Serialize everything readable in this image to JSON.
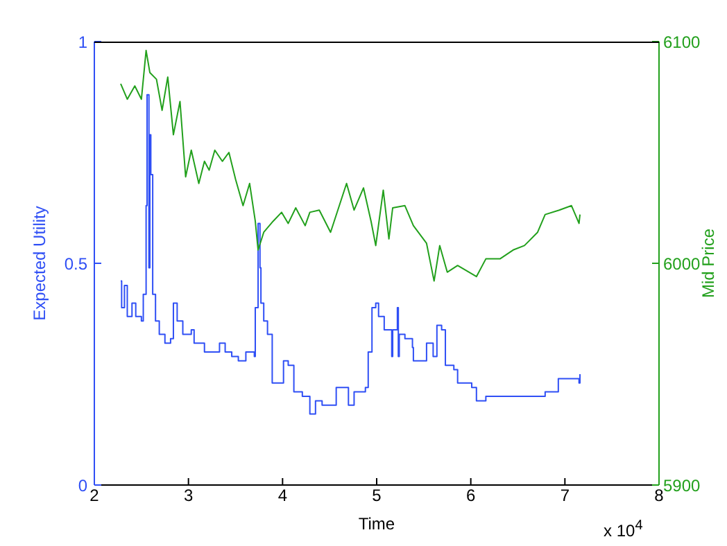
{
  "chart_data": {
    "type": "line",
    "xlabel": "Time",
    "ylabel": "Expected Utility",
    "y2label": "Mid Price",
    "annotations": [
      "x 10$^{4}$"
    ],
    "xlim": [
      2,
      8
    ],
    "xticks": [
      2,
      3,
      4,
      5,
      6,
      7,
      8
    ],
    "ylim": [
      0,
      1
    ],
    "yticks": [
      0,
      0.5,
      1
    ],
    "y2lim": [
      5900,
      6100
    ],
    "y2ticks": [
      5900,
      6000,
      6100
    ],
    "marker": "none",
    "series": [
      {
        "type": "step",
        "color": "#2f4ff5",
        "x": [
          2.28,
          2.29,
          2.32,
          2.35,
          2.4,
          2.44,
          2.5,
          2.52,
          2.55,
          2.56,
          2.58,
          2.59,
          2.6,
          2.62,
          2.65,
          2.69,
          2.75,
          2.81,
          2.84,
          2.88,
          2.94,
          3.03,
          3.06,
          3.17,
          3.31,
          3.33,
          3.39,
          3.46,
          3.53,
          3.61,
          3.7,
          3.71,
          3.74,
          3.76,
          3.77,
          3.8,
          3.84,
          3.89,
          3.95,
          4.01,
          4.06,
          4.12,
          4.21,
          4.29,
          4.35,
          4.42,
          4.54,
          4.57,
          4.64,
          4.7,
          4.76,
          4.88,
          4.91,
          4.95,
          4.99,
          5.02,
          5.08,
          5.16,
          5.17,
          5.22,
          5.23,
          5.24,
          5.3,
          5.38,
          5.39,
          5.5,
          5.53,
          5.6,
          5.64,
          5.69,
          5.73,
          5.82,
          5.86,
          6.01,
          6.06,
          6.16,
          6.35,
          6.57,
          6.78,
          6.79,
          6.91,
          6.93,
          7.15,
          7.16
        ],
        "values": [
          0.46,
          0.4,
          0.45,
          0.38,
          0.41,
          0.38,
          0.37,
          0.43,
          0.63,
          0.88,
          0.49,
          0.79,
          0.7,
          0.43,
          0.37,
          0.34,
          0.32,
          0.33,
          0.41,
          0.37,
          0.34,
          0.35,
          0.32,
          0.3,
          0.3,
          0.32,
          0.3,
          0.29,
          0.28,
          0.3,
          0.29,
          0.4,
          0.59,
          0.49,
          0.41,
          0.37,
          0.34,
          0.23,
          0.23,
          0.28,
          0.27,
          0.21,
          0.2,
          0.16,
          0.19,
          0.18,
          0.18,
          0.22,
          0.22,
          0.18,
          0.21,
          0.22,
          0.3,
          0.4,
          0.41,
          0.38,
          0.35,
          0.29,
          0.35,
          0.4,
          0.29,
          0.34,
          0.33,
          0.31,
          0.28,
          0.28,
          0.32,
          0.29,
          0.36,
          0.35,
          0.27,
          0.26,
          0.23,
          0.22,
          0.19,
          0.2,
          0.2,
          0.2,
          0.2,
          0.21,
          0.21,
          0.24,
          0.23,
          0.25
        ]
      },
      {
        "type": "line",
        "axis": "y2",
        "color": "#22a01c",
        "x": [
          2.28,
          2.35,
          2.43,
          2.5,
          2.55,
          2.59,
          2.66,
          2.72,
          2.78,
          2.84,
          2.91,
          2.97,
          3.03,
          3.11,
          3.17,
          3.22,
          3.28,
          3.36,
          3.43,
          3.5,
          3.58,
          3.65,
          3.71,
          3.74,
          3.8,
          3.9,
          3.99,
          4.06,
          4.14,
          4.24,
          4.29,
          4.39,
          4.51,
          4.68,
          4.76,
          4.86,
          4.94,
          4.99,
          5.07,
          5.13,
          5.17,
          5.3,
          5.39,
          5.53,
          5.61,
          5.67,
          5.75,
          5.86,
          6.06,
          6.16,
          6.31,
          6.45,
          6.57,
          6.71,
          6.79,
          6.94,
          7.07,
          7.15,
          7.16
        ],
        "values": [
          6081,
          6074,
          6080,
          6074,
          6096,
          6086,
          6083,
          6069,
          6084,
          6058,
          6073,
          6039,
          6051,
          6036,
          6046,
          6042,
          6051,
          6046,
          6050,
          6038,
          6026,
          6036,
          6019,
          6006,
          6014,
          6019,
          6023,
          6018,
          6025,
          6017,
          6023,
          6024,
          6014,
          6036,
          6024,
          6034,
          6019,
          6008,
          6033,
          6011,
          6025,
          6026,
          6017,
          6009,
          5992,
          6008,
          5996,
          5999,
          5994,
          6002,
          6002,
          6006,
          6008,
          6014,
          6022,
          6024,
          6026,
          6018,
          6022
        ]
      }
    ]
  }
}
